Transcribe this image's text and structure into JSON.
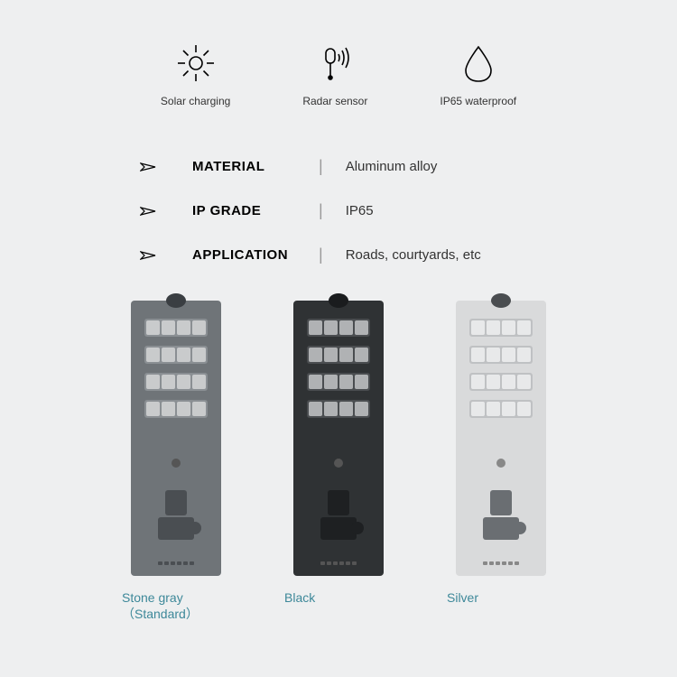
{
  "features": [
    {
      "label": "Solar charging",
      "icon": "sun"
    },
    {
      "label": "Radar sensor",
      "icon": "radar"
    },
    {
      "label": "IP65 waterproof",
      "icon": "droplet"
    }
  ],
  "specs": [
    {
      "label": "MATERIAL",
      "value": "Aluminum alloy"
    },
    {
      "label": "IP GRADE",
      "value": "IP65"
    },
    {
      "label": "APPLICATION",
      "value": "Roads, courtyards,  etc"
    }
  ],
  "products": [
    {
      "name": "Stone gray\n（Standard）",
      "body_color": "#6f7478",
      "sensor_color": "#3a3e42",
      "panel_bg": "#8a8f93",
      "led_color": "#c9cbcc",
      "button_color": "#555",
      "mount_color": "#4a4e52",
      "vent_color": "#4a4e52"
    },
    {
      "name": "Black",
      "body_color": "#2f3234",
      "sensor_color": "#1a1c1e",
      "panel_bg": "#4a4d50",
      "led_color": "#b0b2b4",
      "button_color": "#555",
      "mount_color": "#1e2022",
      "vent_color": "#555"
    },
    {
      "name": "Silver",
      "body_color": "#d9dadb",
      "sensor_color": "#4a4d50",
      "panel_bg": "#bfc1c3",
      "led_color": "#e8e9ea",
      "button_color": "#888",
      "mount_color": "#6a6e72",
      "vent_color": "#888"
    }
  ],
  "style": {
    "background": "#eeeff0",
    "accent_text": "#3d8899",
    "icon_stroke": "#000000"
  }
}
